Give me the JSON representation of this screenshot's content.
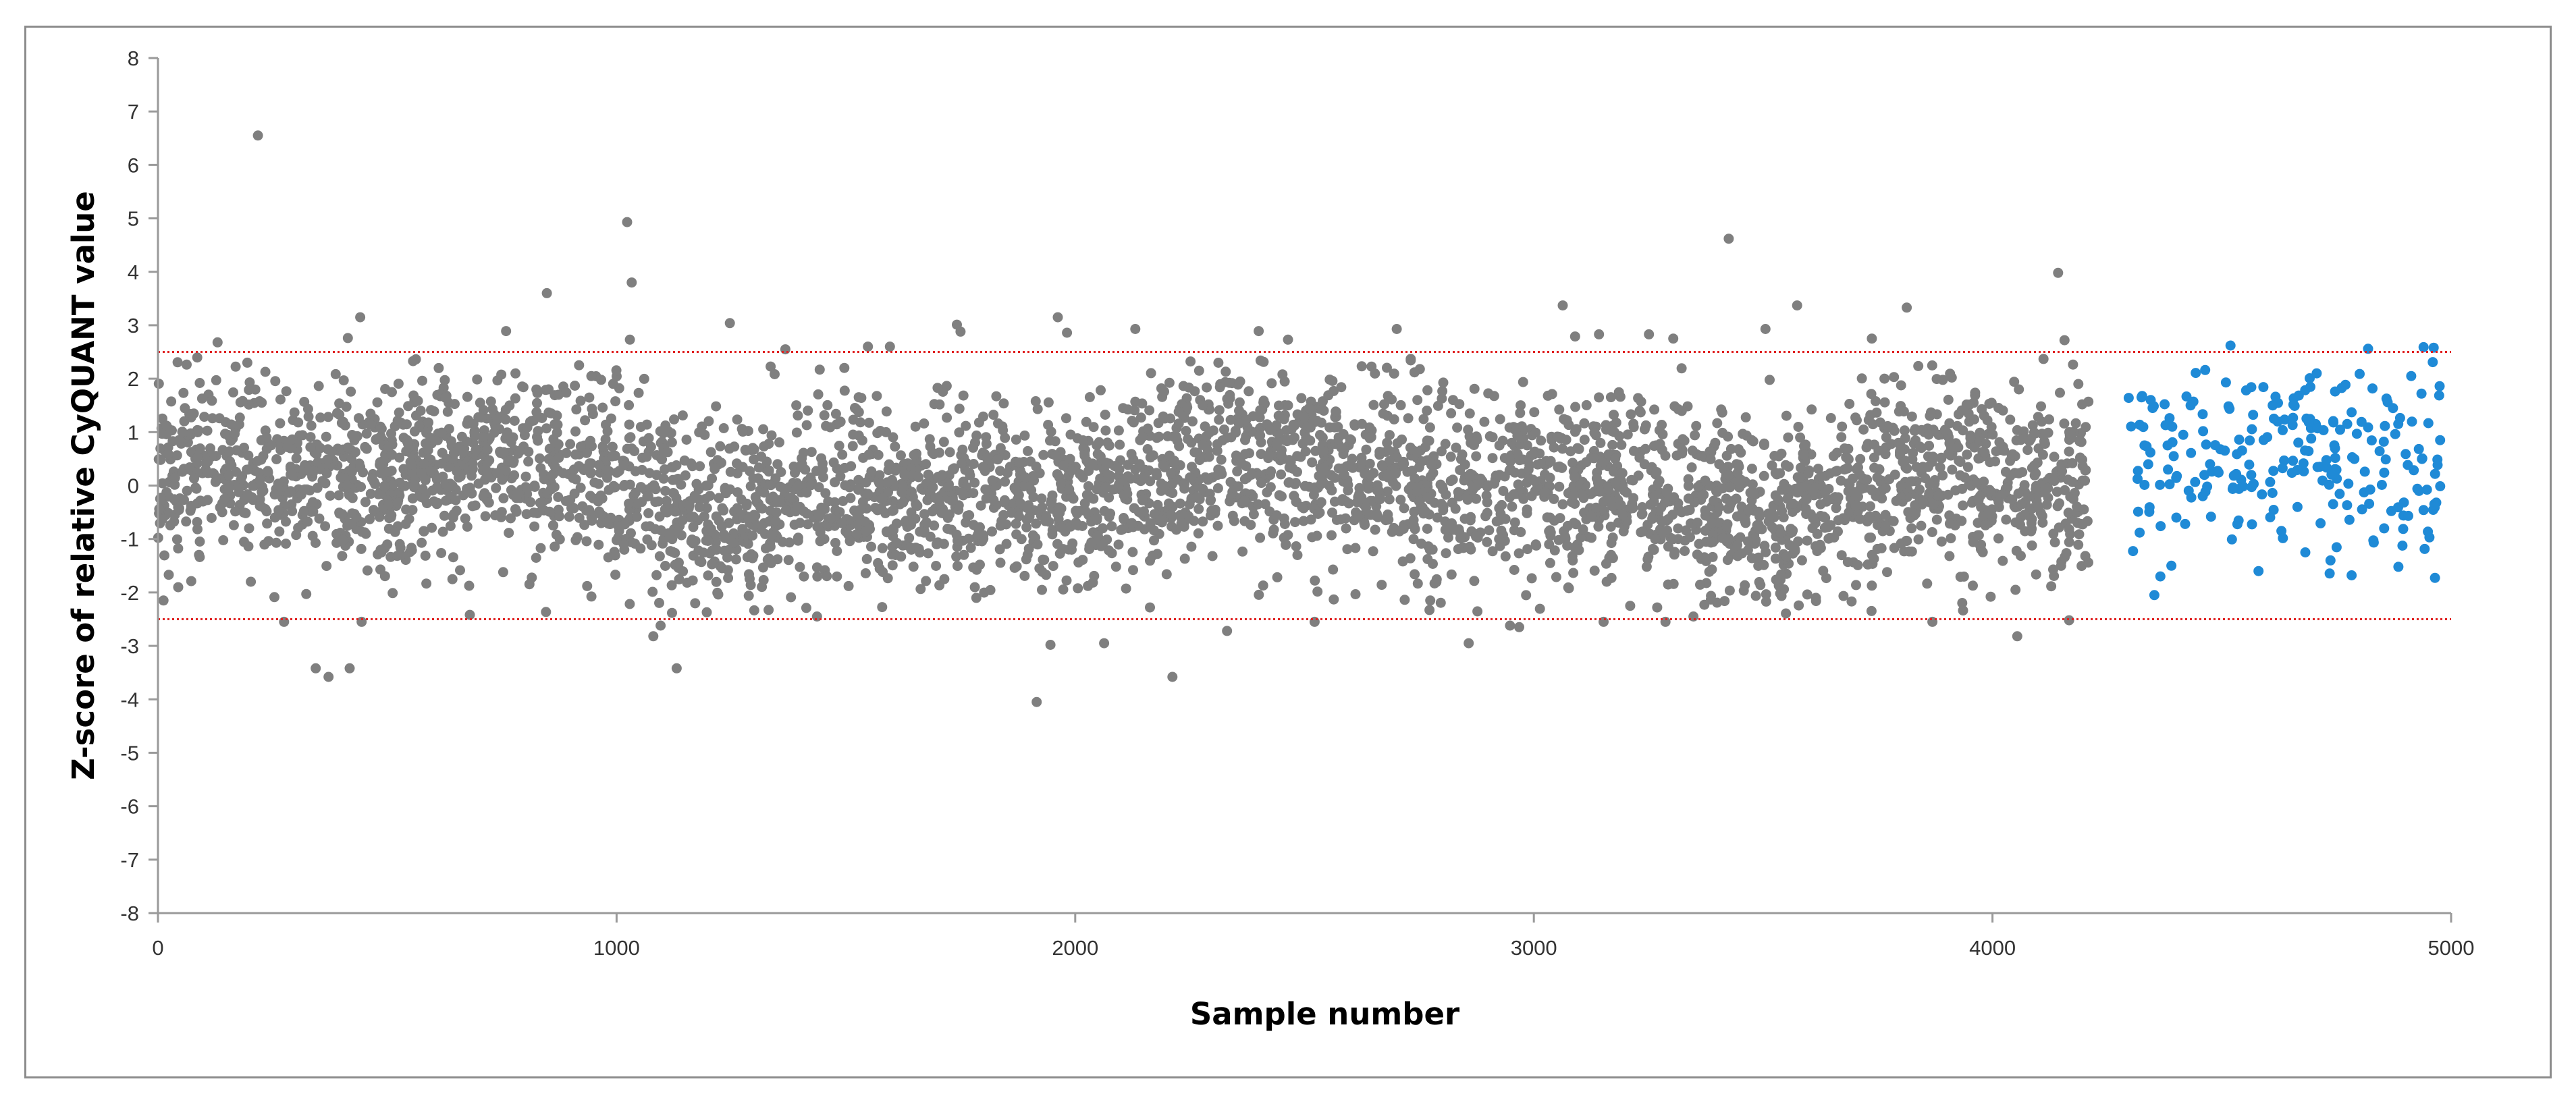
{
  "chart_data": {
    "type": "scatter",
    "title": "",
    "xlabel": "Sample number",
    "ylabel": "Z-score of relative CyQUANT value",
    "xlim": [
      0,
      5000
    ],
    "ylim": [
      -8,
      8
    ],
    "x_ticks": [
      "0",
      "1000",
      "2000",
      "3000",
      "4000",
      "5000"
    ],
    "y_ticks": [
      "-8",
      "-7",
      "-6",
      "-5",
      "-4",
      "-3",
      "-2",
      "-1",
      "0",
      "1",
      "2",
      "3",
      "4",
      "5",
      "6",
      "7",
      "8"
    ],
    "grid": false,
    "legend": "none",
    "threshold_lines": {
      "values": [
        2.5,
        -2.5
      ],
      "style": "dotted",
      "color": "#e02020"
    },
    "series": [
      {
        "color": "#7f7f7f",
        "n_points": 4210,
        "x_range": [
          0,
          4210
        ],
        "points": [
          [
            218,
            6.55
          ],
          [
            1023,
            4.93
          ],
          [
            3425,
            4.62
          ],
          [
            4143,
            3.98
          ],
          [
            1033,
            3.8
          ],
          [
            848,
            3.6
          ],
          [
            3063,
            3.37
          ],
          [
            3574,
            3.37
          ],
          [
            3813,
            3.33
          ],
          [
            441,
            3.15
          ],
          [
            1962,
            3.15
          ],
          [
            1247,
            3.04
          ],
          [
            1742,
            3.01
          ],
          [
            2701,
            2.93
          ],
          [
            2131,
            2.93
          ],
          [
            3505,
            2.93
          ],
          [
            759,
            2.89
          ],
          [
            2400,
            2.89
          ],
          [
            1750,
            2.88
          ],
          [
            3142,
            2.83
          ],
          [
            3251,
            2.83
          ],
          [
            3304,
            2.75
          ],
          [
            1982,
            2.86
          ],
          [
            3737,
            2.75
          ],
          [
            1596,
            2.6
          ],
          [
            1548,
            2.6
          ],
          [
            1368,
            2.55
          ],
          [
            130,
            2.68
          ],
          [
            4157,
            2.72
          ],
          [
            414,
            2.76
          ],
          [
            1029,
            2.73
          ],
          [
            2464,
            2.73
          ],
          [
            3090,
            2.79
          ],
          [
            372,
            -3.58
          ],
          [
            344,
            -3.42
          ],
          [
            418,
            -3.42
          ],
          [
            1131,
            -3.42
          ],
          [
            2212,
            -3.58
          ],
          [
            1916,
            -4.05
          ],
          [
            1946,
            -2.98
          ],
          [
            2063,
            -2.95
          ],
          [
            2331,
            -2.72
          ],
          [
            2858,
            -2.95
          ],
          [
            3287,
            -2.55
          ],
          [
            1080,
            -2.82
          ],
          [
            1096,
            -2.62
          ],
          [
            4054,
            -2.82
          ],
          [
            3869,
            -2.55
          ],
          [
            2968,
            -2.65
          ],
          [
            2948,
            -2.62
          ],
          [
            3152,
            -2.55
          ],
          [
            2522,
            -2.55
          ],
          [
            275,
            -2.55
          ],
          [
            444,
            -2.55
          ],
          [
            680,
            -2.42
          ],
          [
            1437,
            -2.45
          ],
          [
            3348,
            -2.45
          ],
          [
            4167,
            -2.52
          ],
          [
            3996,
            -2.08
          ],
          [
            12,
            -2.15
          ],
          [
            2774,
            -2.15
          ],
          [
            3210,
            -2.25
          ]
        ]
      },
      {
        "color": "#1f8ad6",
        "n_points": 240,
        "x_range": [
          4290,
          4980
        ],
        "points": [
          [
            4519,
            2.62
          ],
          [
            4819,
            2.56
          ],
          [
            4940,
            2.59
          ],
          [
            4962,
            2.58
          ],
          [
            4353,
            -2.05
          ],
          [
            4783,
            -1.68
          ],
          [
            4885,
            -1.52
          ],
          [
            4580,
            -1.6
          ],
          [
            4297,
            1.64
          ],
          [
            4325,
            1.65
          ],
          [
            4345,
            1.6
          ],
          [
            4432,
            1.5
          ],
          [
            4509,
            1.93
          ],
          [
            4553,
            1.78
          ],
          [
            4611,
            1.5
          ],
          [
            4707,
            2.1
          ],
          [
            4747,
            1.76
          ],
          [
            4913,
            2.05
          ],
          [
            4960,
            2.31
          ],
          [
            4975,
            1.86
          ],
          [
            4416,
            0.95
          ],
          [
            4401,
            -0.6
          ],
          [
            4390,
            -1.5
          ],
          [
            4366,
            -1.7
          ],
          [
            4682,
            -1.25
          ],
          [
            4737,
            -1.4
          ],
          [
            4854,
            -0.8
          ],
          [
            4630,
            -0.85
          ],
          [
            4462,
            0.2
          ],
          [
            4976,
            0.85
          ]
        ]
      }
    ]
  }
}
